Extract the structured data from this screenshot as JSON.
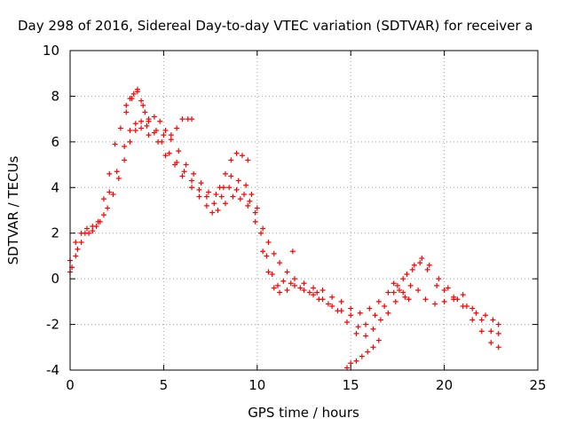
{
  "chart_data": {
    "type": "scatter",
    "title": "Day 298 of 2016, Sidereal Day-to-day VTEC variation (SDTVAR) for receiver a",
    "xlabel": "GPS time / hours",
    "ylabel": "SDTVAR / TECUs",
    "xlim": [
      0,
      25
    ],
    "ylim": [
      -4,
      10
    ],
    "xticks": [
      0,
      5,
      10,
      15,
      20,
      25
    ],
    "yticks": [
      -4,
      -2,
      0,
      2,
      4,
      6,
      8,
      10
    ],
    "grid": true,
    "marker": "+",
    "color": "#ff0000",
    "series": [
      {
        "x": [
          0.0,
          0.3,
          0.6,
          1.0,
          1.4,
          1.8,
          2.1,
          2.5,
          2.9,
          3.2,
          3.5,
          3.8,
          4.2,
          4.7,
          5.1,
          5.6,
          6.0,
          6.5,
          6.9,
          7.3,
          7.6,
          7.9,
          8.3,
          8.7,
          9.1,
          9.5,
          9.9,
          10.3,
          10.6,
          10.9,
          11.2,
          11.6,
          12.0,
          12.5,
          13.0,
          13.5,
          14.0,
          14.5,
          15.0,
          15.4,
          15.8,
          16.2,
          16.6,
          17.0,
          17.4,
          17.8,
          18.2,
          18.6,
          19.0,
          19.5,
          20.0,
          20.5,
          21.0,
          21.5,
          22.0,
          22.5,
          22.9
        ],
        "y": [
          0.3,
          1.0,
          1.6,
          2.0,
          2.3,
          2.8,
          3.8,
          4.7,
          5.8,
          6.5,
          6.8,
          6.6,
          6.3,
          6.0,
          5.4,
          5.0,
          4.5,
          4.0,
          3.6,
          3.2,
          2.9,
          3.0,
          3.3,
          3.6,
          3.5,
          3.2,
          2.5,
          1.2,
          0.3,
          -0.4,
          -0.6,
          -0.5,
          -0.3,
          -0.5,
          -0.7,
          -0.9,
          -1.2,
          -1.4,
          -1.6,
          -2.1,
          -2.5,
          -2.2,
          -1.8,
          -1.5,
          -1.0,
          -0.6,
          -0.3,
          -0.5,
          -0.9,
          -1.1,
          -1.0,
          -0.9,
          -0.7,
          -1.3,
          -1.8,
          -2.3,
          -2.4
        ]
      },
      {
        "x": [
          0.1,
          0.4,
          0.8,
          1.2,
          1.6,
          2.0,
          2.3,
          2.6,
          2.9,
          3.2,
          3.5,
          3.8,
          4.1,
          4.5,
          4.9,
          5.3,
          5.7,
          6.1,
          6.5,
          6.9,
          7.3,
          7.7,
          8.1,
          8.5,
          8.9,
          9.3,
          9.6,
          9.9,
          10.2,
          10.5,
          10.8,
          11.1,
          11.4,
          11.8,
          12.3,
          12.8,
          13.3,
          13.8,
          14.3,
          14.8,
          15.3,
          15.8,
          16.3,
          16.8,
          17.3,
          17.8,
          18.3,
          18.7,
          19.1,
          19.6,
          20.0,
          20.5,
          21.0,
          21.5,
          22.0,
          22.5,
          22.9
        ],
        "y": [
          0.5,
          1.3,
          2.0,
          2.3,
          2.5,
          3.1,
          3.7,
          4.4,
          5.2,
          6.0,
          6.5,
          6.9,
          6.7,
          6.4,
          6.0,
          5.5,
          5.1,
          4.7,
          4.3,
          3.9,
          3.6,
          3.3,
          3.6,
          4.0,
          3.9,
          3.7,
          3.4,
          2.9,
          2.0,
          1.0,
          0.2,
          -0.3,
          -0.1,
          -0.2,
          -0.4,
          -0.6,
          -0.9,
          -1.1,
          -1.4,
          -1.9,
          -2.4,
          -2.0,
          -1.6,
          -1.2,
          -0.6,
          0.0,
          0.4,
          0.7,
          0.4,
          -0.3,
          -0.5,
          -0.8,
          -1.2,
          -1.8,
          -2.3,
          -2.8,
          -3.0
        ]
      },
      {
        "x": [
          0.0,
          0.3,
          0.6,
          0.9,
          1.2,
          1.5,
          1.8,
          2.1,
          2.4,
          2.7,
          3.0,
          3.3,
          3.6,
          3.9,
          4.2,
          4.6,
          5.0,
          5.4,
          5.8,
          6.2,
          6.6,
          7.0,
          7.4,
          7.8,
          8.2,
          8.6,
          9.0,
          9.4,
          9.7,
          10.0,
          10.3,
          10.6,
          10.9,
          11.2,
          11.6,
          12.0,
          12.5,
          13.0,
          13.5,
          14.0,
          14.5,
          15.0,
          15.5,
          16.0,
          16.5,
          17.0,
          17.5,
          18.0,
          18.4,
          18.8,
          19.2,
          19.7,
          20.2,
          20.7,
          21.2,
          21.7,
          22.2,
          22.6,
          22.9
        ],
        "y": [
          0.8,
          1.6,
          2.0,
          2.2,
          2.1,
          2.5,
          3.5,
          4.6,
          5.9,
          6.6,
          7.3,
          7.9,
          8.3,
          7.6,
          6.9,
          6.5,
          6.3,
          6.1,
          5.6,
          5.0,
          4.6,
          4.2,
          3.8,
          3.7,
          4.0,
          4.5,
          4.3,
          4.1,
          3.7,
          3.1,
          2.2,
          1.6,
          1.1,
          0.7,
          0.3,
          0.0,
          -0.2,
          -0.4,
          -0.5,
          -0.8,
          -1.0,
          -1.3,
          -1.5,
          -1.3,
          -1.0,
          -0.6,
          -0.3,
          0.2,
          0.6,
          0.9,
          0.6,
          0.0,
          -0.4,
          -0.9,
          -1.2,
          -1.5,
          -1.6,
          -1.8,
          -2.0
        ]
      },
      {
        "x": [
          4.5,
          4.8,
          5.1,
          5.4,
          5.7,
          6.0,
          6.3,
          6.5,
          8.0,
          8.3,
          8.6,
          8.9,
          9.2,
          9.5,
          3.0,
          3.2,
          3.4,
          3.6,
          3.8,
          4.0,
          4.2
        ],
        "y": [
          7.1,
          6.9,
          6.5,
          6.3,
          6.6,
          7.0,
          7.0,
          7.0,
          4.0,
          4.6,
          5.2,
          5.5,
          5.4,
          5.2,
          7.6,
          7.9,
          8.1,
          8.2,
          7.8,
          7.3,
          7.0
        ]
      },
      {
        "x": [
          14.8,
          15.0,
          15.3,
          15.6,
          15.9,
          16.2,
          16.5,
          11.9,
          13.2,
          17.3,
          17.6,
          17.9,
          18.1
        ],
        "y": [
          -3.9,
          -3.7,
          -3.6,
          -3.4,
          -3.2,
          -3.0,
          -2.7,
          1.2,
          -0.6,
          -0.2,
          -0.5,
          -0.8,
          -0.9
        ]
      }
    ]
  }
}
